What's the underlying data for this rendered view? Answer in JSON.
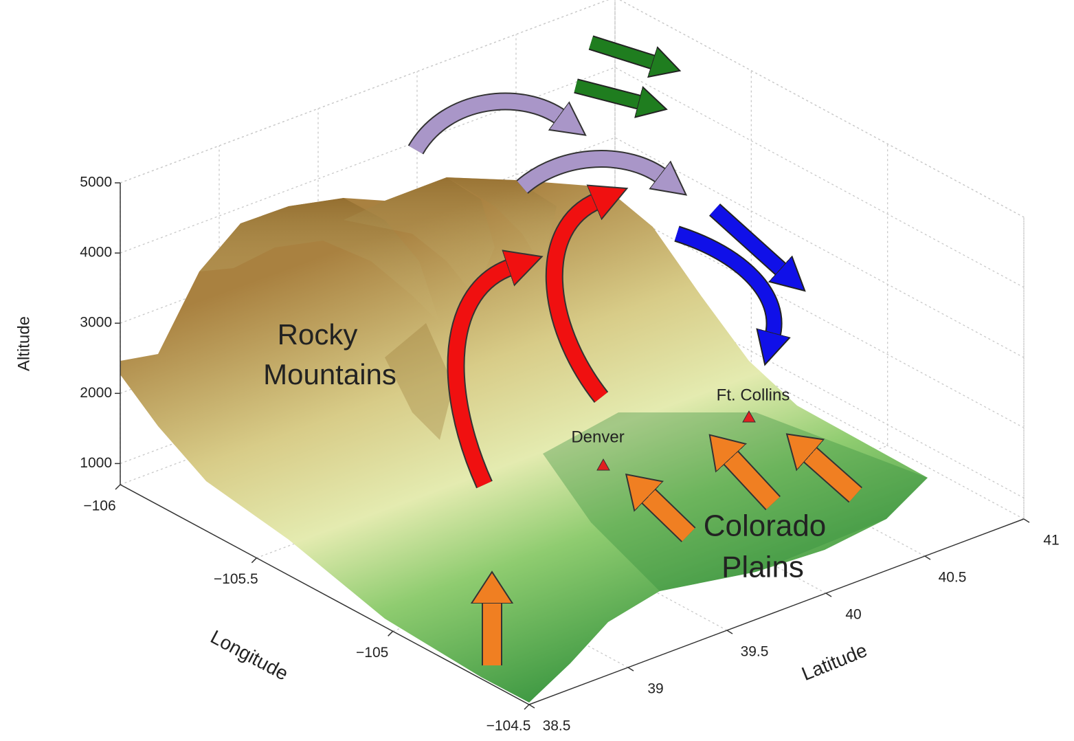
{
  "chart_data": {
    "type": "surface3d",
    "xlabel": "Longitude",
    "ylabel": "Latitude",
    "zlabel": "Altitude",
    "xlim": [
      -106,
      -104.5
    ],
    "ylim": [
      38.5,
      41
    ],
    "zlim": [
      700,
      5000
    ],
    "xticks": [
      {
        "value": -106,
        "label": "−106"
      },
      {
        "value": -105.5,
        "label": "−105.5"
      },
      {
        "value": -105,
        "label": "−105"
      },
      {
        "value": -104.5,
        "label": "−104.5"
      }
    ],
    "yticks": [
      38.5,
      39,
      39.5,
      40,
      40.5,
      41
    ],
    "zticks": [
      1000,
      2000,
      3000,
      4000,
      5000
    ],
    "grid": true,
    "annotations": [
      {
        "lines": [
          "Rocky",
          "Mountains"
        ]
      },
      {
        "lines": [
          "Colorado",
          "Plains"
        ]
      },
      {
        "lines": [
          "Denver"
        ]
      },
      {
        "lines": [
          "Ft. Collins"
        ]
      }
    ]
  }
}
